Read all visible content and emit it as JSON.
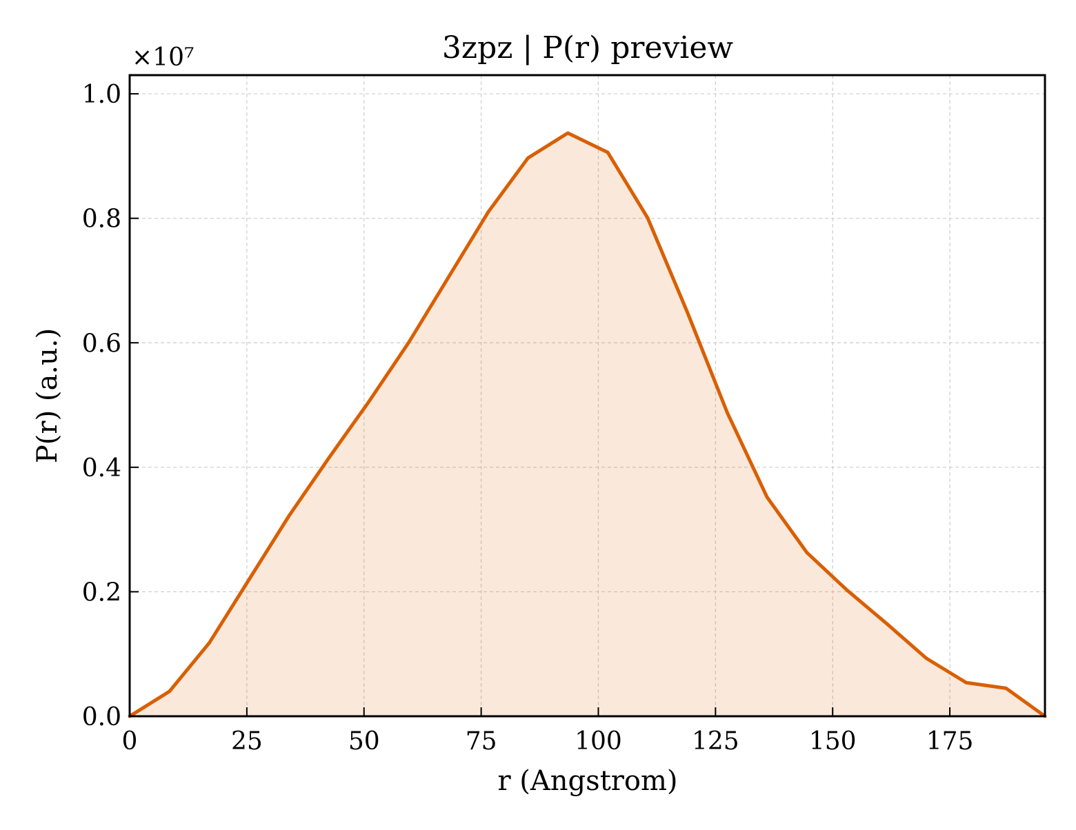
{
  "chart_data": {
    "type": "area",
    "title": "3zpz | P(r) preview",
    "xlabel": "r (Angstrom)",
    "ylabel": "P(r) (a.u.)",
    "y_offset_text": "×10⁷",
    "y_scale_factor": 10000000,
    "xlim": [
      0,
      195.3
    ],
    "ylim": [
      0,
      1.03
    ],
    "x_ticks": [
      0,
      25,
      50,
      75,
      100,
      125,
      150,
      175
    ],
    "x_tick_labels": [
      "0",
      "25",
      "50",
      "75",
      "100",
      "125",
      "150",
      "175"
    ],
    "y_ticks": [
      0.0,
      0.2,
      0.4,
      0.6,
      0.8,
      1.0
    ],
    "y_tick_labels": [
      "0.0",
      "0.2",
      "0.4",
      "0.6",
      "0.8",
      "1.0"
    ],
    "grid": true,
    "legend": false,
    "line_color": "#d95f02",
    "fill_color": "#d95f02",
    "fill_opacity": 0.14,
    "series": [
      {
        "x": [
          0,
          8.5,
          17.0,
          25.5,
          34.0,
          42.5,
          51.0,
          59.5,
          68.0,
          76.5,
          85.0,
          93.5,
          102.0,
          110.5,
          119.0,
          127.5,
          136.0,
          144.5,
          153.0,
          161.5,
          170.0,
          178.5,
          187.0,
          195.3
        ],
        "values": [
          0.0,
          0.04,
          0.118,
          0.22,
          0.322,
          0.415,
          0.505,
          0.6,
          0.705,
          0.81,
          0.897,
          0.937,
          0.906,
          0.801,
          0.649,
          0.488,
          0.352,
          0.263,
          0.203,
          0.149,
          0.093,
          0.054,
          0.045,
          0.0
        ]
      }
    ]
  }
}
